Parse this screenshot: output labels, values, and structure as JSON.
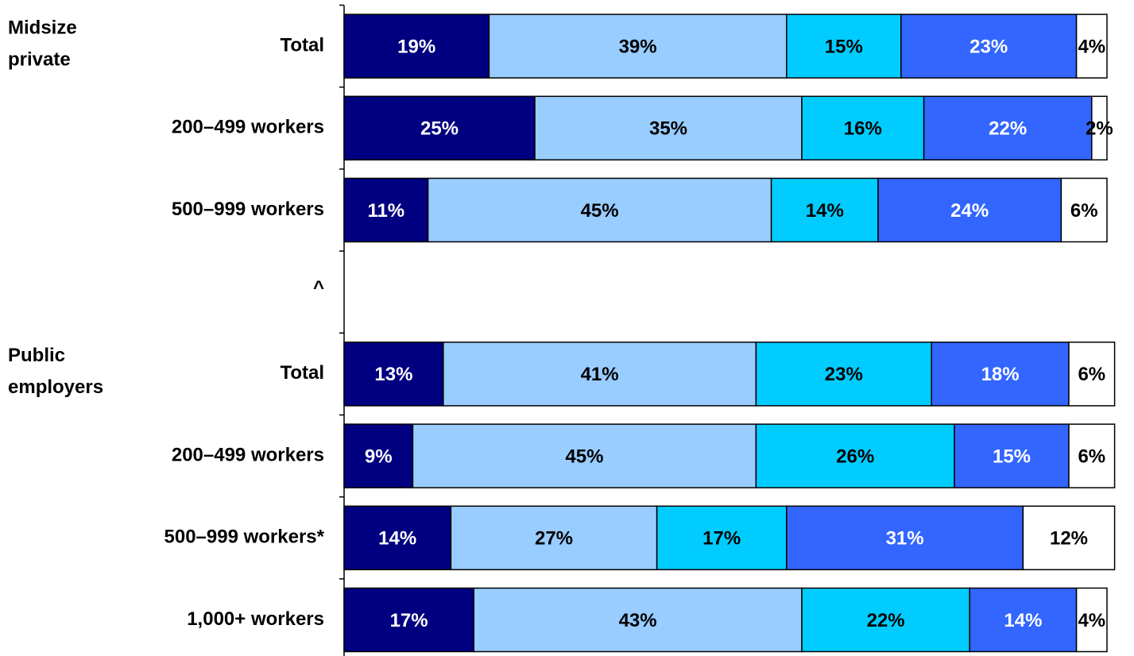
{
  "chart_data": {
    "type": "stacked-bar",
    "orientation": "horizontal",
    "group_labels": [
      [
        "Midsize",
        "private"
      ],
      [
        "Public",
        "employers"
      ]
    ],
    "categories": [
      "Total",
      "200–499 workers",
      "500–999 workers",
      "^",
      "Total",
      "200–499 workers",
      "500–999 workers*",
      "1,000+ workers"
    ],
    "xlim": [
      0,
      100
    ],
    "series": [
      {
        "color": "#000080",
        "values": [
          19,
          25,
          11,
          null,
          13,
          9,
          14,
          17
        ],
        "value_labels": [
          "19%",
          "25%",
          "11%",
          null,
          "13%",
          "9%",
          "14%",
          "17%"
        ]
      },
      {
        "color": "#99ccff",
        "values": [
          39,
          35,
          45,
          null,
          41,
          45,
          27,
          43
        ],
        "value_labels": [
          "39%",
          "35%",
          "45%",
          null,
          "41%",
          "45%",
          "27%",
          "43%"
        ]
      },
      {
        "color": "#00ccff",
        "values": [
          15,
          16,
          14,
          null,
          23,
          26,
          17,
          22
        ],
        "value_labels": [
          "15%",
          "16%",
          "14%",
          null,
          "23%",
          "26%",
          "17%",
          "22%"
        ]
      },
      {
        "color": "#3366ff",
        "values": [
          23,
          22,
          24,
          null,
          18,
          15,
          31,
          14
        ],
        "value_labels": [
          "23%",
          "22%",
          "24%",
          null,
          "18%",
          "15%",
          "31%",
          "14%"
        ]
      },
      {
        "color": "#ffffff",
        "values": [
          4,
          2,
          6,
          null,
          6,
          6,
          12,
          4
        ],
        "value_labels": [
          "4%",
          "2%",
          "6%",
          null,
          "6%",
          "6%",
          "12%",
          "4%"
        ]
      }
    ]
  }
}
